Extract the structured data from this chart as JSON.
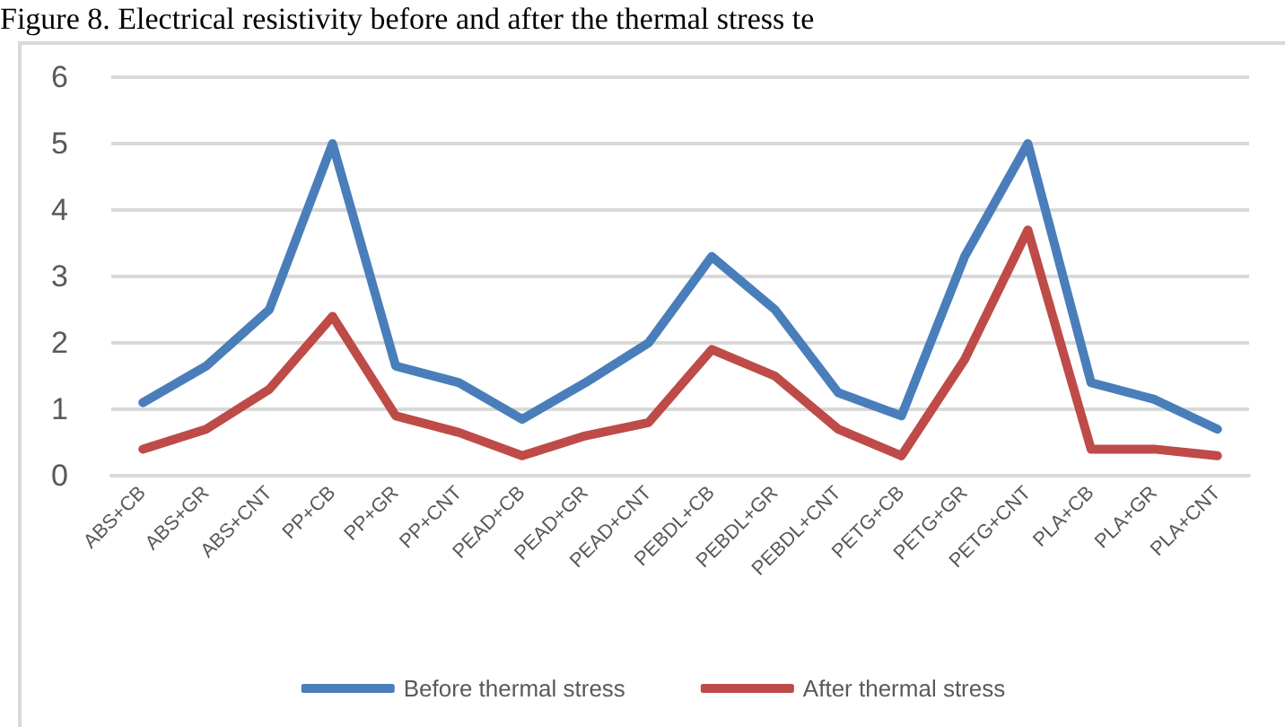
{
  "chart_data": {
    "type": "line",
    "title": "Figure 8. Electrical resistivity before and after the thermal stress te",
    "categories": [
      "ABS+CB",
      "ABS+GR",
      "ABS+CNT",
      "PP+CB",
      "PP+GR",
      "PP+CNT",
      "PEAD+CB",
      "PEAD+GR",
      "PEAD+CNT",
      "PEBDL+CB",
      "PEBDL+GR",
      "PEBDL+CNT",
      "PETG+CB",
      "PETG+GR",
      "PETG+CNT",
      "PLA+CB",
      "PLA+GR",
      "PLA+CNT"
    ],
    "series": [
      {
        "name": "Before thermal stress",
        "color": "#4a7ebb",
        "values": [
          1.1,
          1.65,
          2.5,
          5.0,
          1.65,
          1.4,
          0.85,
          1.4,
          2.0,
          3.3,
          2.5,
          1.25,
          0.9,
          3.3,
          5.0,
          1.4,
          1.15,
          0.7
        ]
      },
      {
        "name": "After thermal stress",
        "color": "#be4b48",
        "values": [
          0.4,
          0.7,
          1.3,
          2.4,
          0.9,
          0.65,
          0.3,
          0.6,
          0.8,
          1.9,
          1.5,
          0.7,
          0.3,
          1.75,
          3.7,
          0.4,
          0.4,
          0.3
        ]
      }
    ],
    "ylim": [
      0,
      6
    ],
    "yticks": [
      0,
      1,
      2,
      3,
      4,
      5,
      6
    ],
    "grid": "y",
    "legend": "bottom",
    "marker": "none",
    "line_style": "solid"
  }
}
